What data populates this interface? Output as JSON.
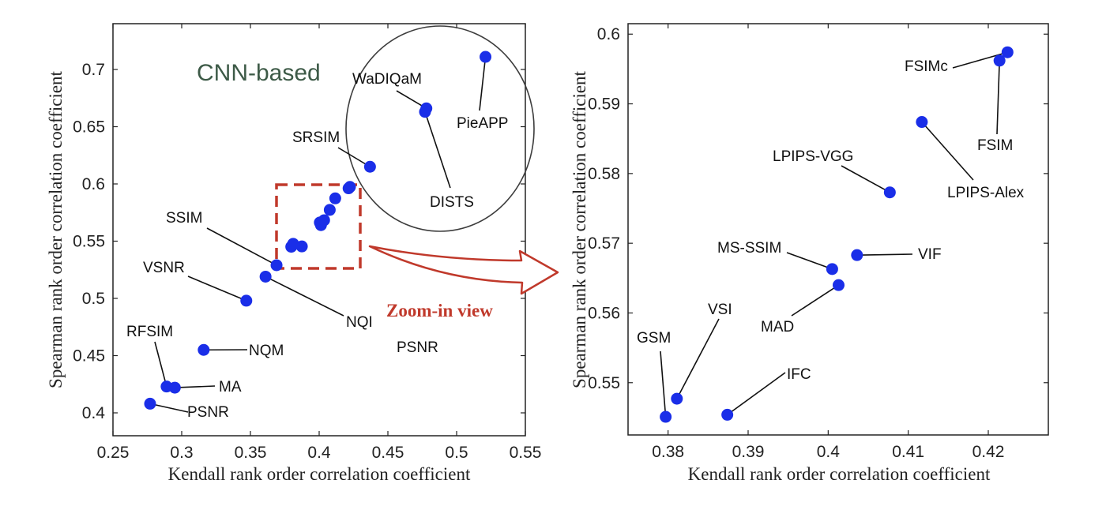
{
  "chart_data": [
    {
      "type": "scatter",
      "xlabel": "Kendall rank order correlation coefficient",
      "ylabel": "Spearman rank order correlation coefficient",
      "xlim": [
        0.25,
        0.55
      ],
      "ylim": [
        0.38,
        0.74
      ],
      "xticks": [
        "0.25",
        "0.3",
        "0.35",
        "0.4",
        "0.45",
        "0.5",
        "0.55"
      ],
      "yticks": [
        "0.4",
        "0.45",
        "0.5",
        "0.55",
        "0.6",
        "0.65",
        "0.7"
      ],
      "points": [
        {
          "label": "PieAPP",
          "x": 0.521,
          "y": 0.711
        },
        {
          "label": "WaDIQaM",
          "x": 0.478,
          "y": 0.666
        },
        {
          "label": "DISTS",
          "x": 0.477,
          "y": 0.663
        },
        {
          "label": "SRSIM",
          "x": 0.437,
          "y": 0.615
        },
        {
          "label": "SSIM",
          "x": 0.369,
          "y": 0.529
        },
        {
          "label": "NQI",
          "x": 0.361,
          "y": 0.519
        },
        {
          "label": "VSNR",
          "x": 0.347,
          "y": 0.498
        },
        {
          "label": "NQM",
          "x": 0.316,
          "y": 0.455
        },
        {
          "label": "RFSIM",
          "x": 0.289,
          "y": 0.423
        },
        {
          "label": "MA",
          "x": 0.295,
          "y": 0.422
        },
        {
          "label": "PSNR",
          "x": 0.277,
          "y": 0.408
        },
        {
          "label": "",
          "x": 0.3797,
          "y": 0.5451
        },
        {
          "label": "",
          "x": 0.3811,
          "y": 0.5477
        },
        {
          "label": "",
          "x": 0.3874,
          "y": 0.5454
        },
        {
          "label": "",
          "x": 0.4005,
          "y": 0.5663
        },
        {
          "label": "",
          "x": 0.4013,
          "y": 0.564
        },
        {
          "label": "",
          "x": 0.4036,
          "y": 0.5683
        },
        {
          "label": "",
          "x": 0.4077,
          "y": 0.5773
        },
        {
          "label": "",
          "x": 0.4117,
          "y": 0.5874
        },
        {
          "label": "",
          "x": 0.4214,
          "y": 0.5962
        },
        {
          "label": "",
          "x": 0.4224,
          "y": 0.5974
        }
      ],
      "group_annotation": "CNN-based",
      "stray_label": "PSNR",
      "zoom_annotation": "Zoom-in view"
    },
    {
      "type": "scatter",
      "xlabel": "Kendall rank order correlation coefficient",
      "ylabel": "Spearman rank order correlation coefficient",
      "xlim": [
        0.375,
        0.4275
      ],
      "ylim": [
        0.5425,
        0.6015
      ],
      "xticks": [
        "0.38",
        "0.39",
        "0.4",
        "0.41",
        "0.42"
      ],
      "yticks": [
        "0.55",
        "0.56",
        "0.57",
        "0.58",
        "0.59",
        "0.6"
      ],
      "points": [
        {
          "label": "FSIMc",
          "x": 0.4224,
          "y": 0.5974
        },
        {
          "label": "FSIM",
          "x": 0.4214,
          "y": 0.5962
        },
        {
          "label": "LPIPS-Alex",
          "x": 0.4117,
          "y": 0.5874
        },
        {
          "label": "LPIPS-VGG",
          "x": 0.4077,
          "y": 0.5773
        },
        {
          "label": "VIF",
          "x": 0.4036,
          "y": 0.5683
        },
        {
          "label": "MS-SSIM",
          "x": 0.4005,
          "y": 0.5663
        },
        {
          "label": "MAD",
          "x": 0.4013,
          "y": 0.564
        },
        {
          "label": "VSI",
          "x": 0.3811,
          "y": 0.5477
        },
        {
          "label": "GSM",
          "x": 0.3797,
          "y": 0.5451
        },
        {
          "label": "IFC",
          "x": 0.3874,
          "y": 0.5454
        }
      ]
    }
  ]
}
